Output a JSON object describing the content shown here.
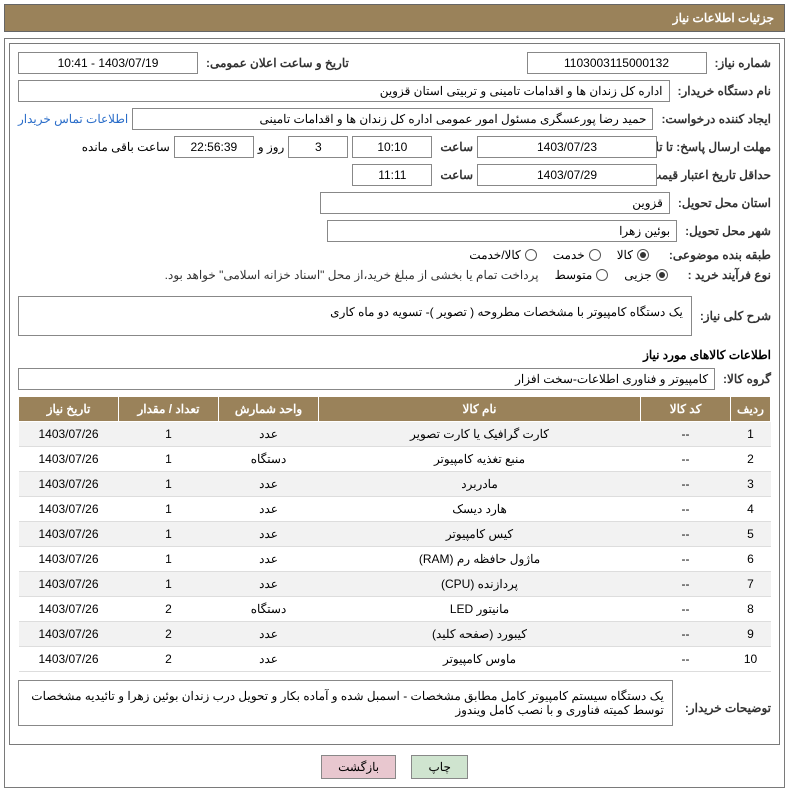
{
  "header": {
    "title": "جزئیات اطلاعات نیاز"
  },
  "fields": {
    "need_no_label": "شماره نیاز:",
    "need_no": "1103003115000132",
    "announce_label": "تاریخ و ساعت اعلان عمومی:",
    "announce": "1403/07/19 - 10:41",
    "buyer_org_label": "نام دستگاه خریدار:",
    "buyer_org": "اداره کل زندان ها و اقدامات تامینی و تربیتی استان قزوین",
    "requester_label": "ایجاد کننده درخواست:",
    "requester": "حمید رضا  پورعسگری مسئول امور عمومی  اداره کل زندان ها و اقدامات تامینی",
    "contact_link": "اطلاعات تماس خریدار",
    "deadline_label": "مهلت ارسال پاسخ: تا تاریخ:",
    "deadline_date": "1403/07/23",
    "time_label": "ساعت",
    "deadline_time": "10:10",
    "days": "3",
    "days_suffix": "روز و",
    "remaining_time": "22:56:39",
    "remaining_suffix": "ساعت باقی مانده",
    "validity_label": "حداقل تاریخ اعتبار قیمت: تا تاریخ:",
    "validity_date": "1403/07/29",
    "validity_time": "11:11",
    "province_label": "استان محل تحویل:",
    "province": "قزوین",
    "city_label": "شهر محل تحویل:",
    "city": "بوئین زهرا",
    "category_label": "طبقه بنده موضوعی:",
    "cat_kala": "کالا",
    "cat_khadamat": "خدمت",
    "cat_both": "کالا/خدمت",
    "process_label": "نوع فرآیند خرید :",
    "proc_partial": "جزیی",
    "proc_medium": "متوسط",
    "payment_note": "پرداخت تمام یا بخشی از مبلغ خرید،از محل \"اسناد خزانه اسلامی\" خواهد بود.",
    "overall_label": "شرح کلی نیاز:",
    "overall_desc": "یک دستگاه کامپیوتر با مشخصات مطروحه ( تصویر )- تسویه دو ماه کاری",
    "goods_info_title": "اطلاعات کالاهای مورد نیاز",
    "group_label": "گروه کالا:",
    "group": "کامپیوتر و فناوری اطلاعات-سخت افزار",
    "buyer_notes_label": "توضیحات خریدار:",
    "buyer_notes": "یک دستگاه سیستم کامپیوتر کامل مطابق مشخصات  - اسمبل شده و آماده بکار و تحویل درب زندان بوئین زهرا و تائیدیه مشخصات توسط کمیته فناوری و با نصب کامل ویندوز"
  },
  "table": {
    "headers": {
      "row": "ردیف",
      "code": "کد کالا",
      "name": "نام کالا",
      "unit": "واحد شمارش",
      "qty": "تعداد / مقدار",
      "date": "تاریخ نیاز"
    },
    "rows": [
      {
        "n": "1",
        "code": "--",
        "name": "کارت گرافیک یا کارت تصویر",
        "unit": "عدد",
        "qty": "1",
        "date": "1403/07/26"
      },
      {
        "n": "2",
        "code": "--",
        "name": "منبع تغذیه کامپیوتر",
        "unit": "دستگاه",
        "qty": "1",
        "date": "1403/07/26"
      },
      {
        "n": "3",
        "code": "--",
        "name": "مادربرد",
        "unit": "عدد",
        "qty": "1",
        "date": "1403/07/26"
      },
      {
        "n": "4",
        "code": "--",
        "name": "هارد دیسک",
        "unit": "عدد",
        "qty": "1",
        "date": "1403/07/26"
      },
      {
        "n": "5",
        "code": "--",
        "name": "کیس کامپیوتر",
        "unit": "عدد",
        "qty": "1",
        "date": "1403/07/26"
      },
      {
        "n": "6",
        "code": "--",
        "name": "ماژول حافظه رم (RAM)",
        "unit": "عدد",
        "qty": "1",
        "date": "1403/07/26"
      },
      {
        "n": "7",
        "code": "--",
        "name": "پردازنده (CPU)",
        "unit": "عدد",
        "qty": "1",
        "date": "1403/07/26"
      },
      {
        "n": "8",
        "code": "--",
        "name": "مانیتور LED",
        "unit": "دستگاه",
        "qty": "2",
        "date": "1403/07/26"
      },
      {
        "n": "9",
        "code": "--",
        "name": "کیبورد (صفحه کلید)",
        "unit": "عدد",
        "qty": "2",
        "date": "1403/07/26"
      },
      {
        "n": "10",
        "code": "--",
        "name": "ماوس کامپیوتر",
        "unit": "عدد",
        "qty": "2",
        "date": "1403/07/26"
      }
    ]
  },
  "buttons": {
    "print": "چاپ",
    "back": "بازگشت"
  }
}
